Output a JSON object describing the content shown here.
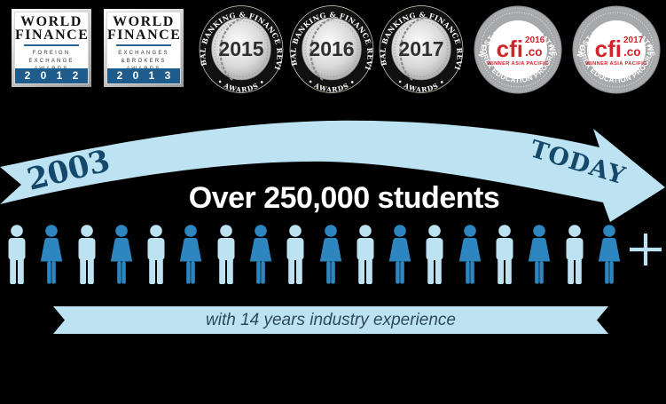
{
  "canvas": {
    "background": "#000000"
  },
  "awards_row": {
    "world_finance": [
      {
        "title_line1": "WORLD",
        "title_line2": "FINANCE",
        "subtitle_line1": "FOREIGN",
        "subtitle_line2": "EXCHANGE",
        "subtitle_line3": "AWARDS",
        "year": "2012",
        "year_display": "2 0 1 2"
      },
      {
        "title_line1": "WORLD",
        "title_line2": "FINANCE",
        "subtitle_line1": "EXCHANGES",
        "subtitle_line2": "&BROKERS",
        "subtitle_line3": "AWARDS",
        "year": "2013",
        "year_display": "2 0 1 3"
      }
    ],
    "gbfr_medals": [
      {
        "ring_text": "GLOBAL BANKING & FINANCE REVIEW",
        "bottom_text": "• AWARDS •",
        "year": "2015"
      },
      {
        "ring_text": "GLOBAL BANKING & FINANCE REVIEW",
        "bottom_text": "• AWARDS •",
        "year": "2016"
      },
      {
        "ring_text": "GLOBAL BANKING & FINANCE REVIEW",
        "bottom_text": "• AWARDS •",
        "year": "2017"
      }
    ],
    "cfi_badges": [
      {
        "top_text": "MOST TRANSFORMATIVE",
        "bottom_text": "FOREX EDUCATION PROGRAM",
        "brand": "cfi",
        "domain": ".co",
        "year": "2016",
        "winner_text": "WINNER ASIA PACIFIC"
      },
      {
        "top_text": "MOST TRANSFORMATIVE",
        "bottom_text": "FOREX EDUCATION PROGRAM",
        "brand": "cfi",
        "domain": ".co",
        "year": "2017",
        "winner_text": "WINNER ASIA PACIFIC"
      }
    ]
  },
  "timeline": {
    "start_label": "2003",
    "end_label": "TODAY",
    "headline": "Over 250,000 students"
  },
  "people": {
    "count": 18,
    "pattern": "alternating male/female",
    "male_color": "#BDE2F2",
    "female_color": "#2D86C0",
    "plus_symbol": "+"
  },
  "experience_ribbon": {
    "text": "with 14 years industry experience"
  },
  "icons": {
    "plus": "plus-icon",
    "male": "male-person-icon",
    "female": "female-person-icon"
  },
  "colors": {
    "background": "#000000",
    "ribbon_blue": "#BDE3F2",
    "navy_text": "#14496B",
    "cfi_red": "#D0242B",
    "wf_band_blue": "#1E5C8D",
    "headline_white": "#FFFFFF"
  }
}
